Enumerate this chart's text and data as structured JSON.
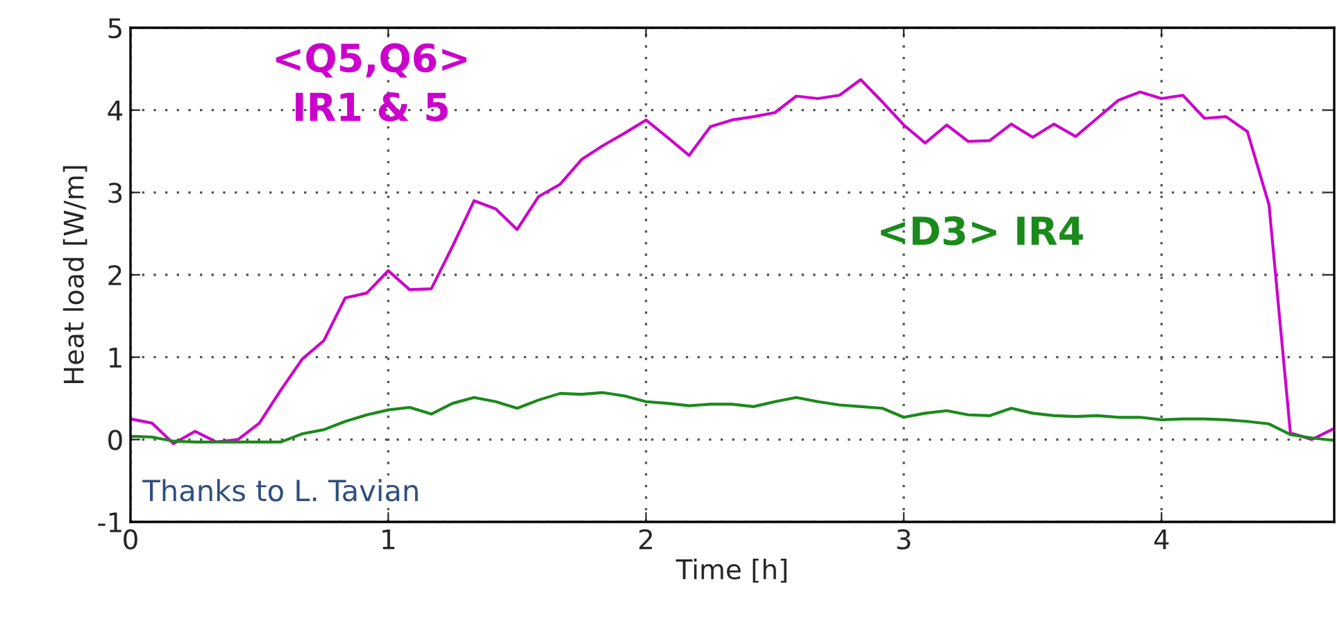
{
  "chart_data": {
    "type": "line",
    "xlabel": "Time [h]",
    "ylabel": "Heat load [W/m]",
    "xlim": [
      0,
      4.67
    ],
    "xticks": [
      0,
      1,
      2,
      3,
      4
    ],
    "ylim": [
      -1,
      5
    ],
    "yticks": [
      -1,
      0,
      1,
      2,
      3,
      4,
      5
    ],
    "grid": true,
    "marker": "none",
    "line_style": "solid",
    "x": [
      0,
      0.083,
      0.167,
      0.25,
      0.333,
      0.417,
      0.5,
      0.583,
      0.667,
      0.75,
      0.833,
      0.917,
      1.0,
      1.083,
      1.167,
      1.25,
      1.333,
      1.417,
      1.5,
      1.583,
      1.667,
      1.75,
      1.833,
      1.917,
      2.0,
      2.083,
      2.167,
      2.25,
      2.333,
      2.417,
      2.5,
      2.583,
      2.667,
      2.75,
      2.833,
      2.917,
      3.0,
      3.083,
      3.167,
      3.25,
      3.333,
      3.417,
      3.5,
      3.583,
      3.667,
      3.75,
      3.833,
      3.917,
      4.0,
      4.083,
      4.167,
      4.25,
      4.333,
      4.417,
      4.5,
      4.583,
      4.667
    ],
    "series": [
      {
        "name": "<Q5,Q6>\nIR1 & 5",
        "color": "#cc00cc",
        "values": [
          0.25,
          0.2,
          -0.05,
          0.1,
          -0.03,
          0.0,
          0.2,
          0.6,
          0.98,
          1.2,
          1.72,
          1.78,
          2.05,
          1.82,
          1.83,
          2.35,
          2.9,
          2.8,
          2.55,
          2.95,
          3.1,
          3.4,
          3.57,
          3.72,
          3.88,
          3.67,
          3.45,
          3.8,
          3.88,
          3.92,
          3.97,
          4.17,
          4.14,
          4.18,
          4.37,
          4.1,
          3.82,
          3.6,
          3.82,
          3.62,
          3.63,
          3.83,
          3.67,
          3.83,
          3.68,
          3.9,
          4.12,
          4.22,
          4.14,
          4.18,
          3.9,
          3.92,
          3.74,
          2.85,
          0.08,
          0.0,
          0.13
        ]
      },
      {
        "name": "<D3> IR4",
        "color": "#1a8a1a",
        "values": [
          0.04,
          0.03,
          -0.02,
          -0.03,
          -0.03,
          -0.03,
          -0.03,
          -0.03,
          0.07,
          0.12,
          0.22,
          0.3,
          0.36,
          0.39,
          0.31,
          0.44,
          0.51,
          0.46,
          0.38,
          0.48,
          0.56,
          0.55,
          0.57,
          0.53,
          0.46,
          0.44,
          0.41,
          0.43,
          0.43,
          0.4,
          0.46,
          0.51,
          0.46,
          0.42,
          0.4,
          0.38,
          0.27,
          0.32,
          0.35,
          0.3,
          0.29,
          0.38,
          0.32,
          0.29,
          0.28,
          0.29,
          0.27,
          0.27,
          0.24,
          0.25,
          0.25,
          0.24,
          0.22,
          0.19,
          0.06,
          0.02,
          -0.01
        ]
      }
    ],
    "annotations": [
      "Thanks to L. Tavian"
    ]
  }
}
